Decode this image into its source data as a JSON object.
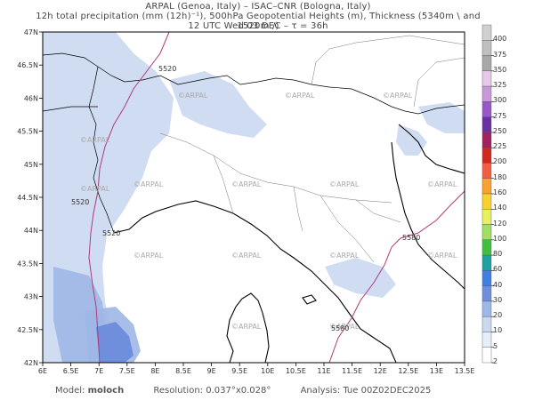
{
  "header": {
    "line1": "ARPAL (Genoa, Italy)  –  ISAC–CNR (Bologna, Italy)",
    "line2": "12h total precipitation (mm (12h)⁻¹), 500hPa Geopotential Heights (m), Thickness (5340m \\ and 1520m /)",
    "line3": "12 UTC Wed 03 DEC   –   τ = 36h"
  },
  "map": {
    "lon_ticks": [
      "6E",
      "6.5E",
      "7E",
      "7.5E",
      "8E",
      "8.5E",
      "9E",
      "9.5E",
      "10E",
      "10.5E",
      "11E",
      "11.5E",
      "12E",
      "12.5E",
      "13E",
      "13.5E"
    ],
    "lat_ticks": [
      "47N",
      "46.5N",
      "46N",
      "45.5N",
      "45N",
      "44.5N",
      "44N",
      "43.5N",
      "43N",
      "42.5N",
      "42N"
    ],
    "watermark": "©ARPAL",
    "contour_labels": [
      "5520",
      "5520",
      "5520",
      "5580",
      "5580"
    ],
    "colors": {
      "land_fill": "#ffffff",
      "precip_light": "#cad8f0",
      "precip_mid": "#9fb7e6",
      "precip_heavy": "#6f8fdc",
      "geopotential": "#b03a7a"
    }
  },
  "colorbar": {
    "labels": [
      "400",
      "375",
      "350",
      "325",
      "300",
      "275",
      "250",
      "225",
      "200",
      "180",
      "160",
      "140",
      "120",
      "100",
      "80",
      "60",
      "40",
      "30",
      "20",
      "10",
      "5",
      "2"
    ],
    "colors": [
      "#d0d0d0",
      "#bfbfbf",
      "#a8a8a8",
      "#e8c8e8",
      "#c898d8",
      "#9858c8",
      "#6830a0",
      "#a02060",
      "#d02820",
      "#f06040",
      "#f8a030",
      "#f8d030",
      "#e8f060",
      "#a0e060",
      "#40c040",
      "#20a0a0",
      "#4080e0",
      "#6f8fdc",
      "#9fb7e6",
      "#cad8f0",
      "#e6eefa",
      "#ffffff"
    ]
  },
  "footer": {
    "model": "Model: ",
    "model_name": "moloch",
    "resolution": "Resolution: 0.037°x0.028°",
    "analysis": "Analysis: Tue 00Z02DEC2025"
  }
}
